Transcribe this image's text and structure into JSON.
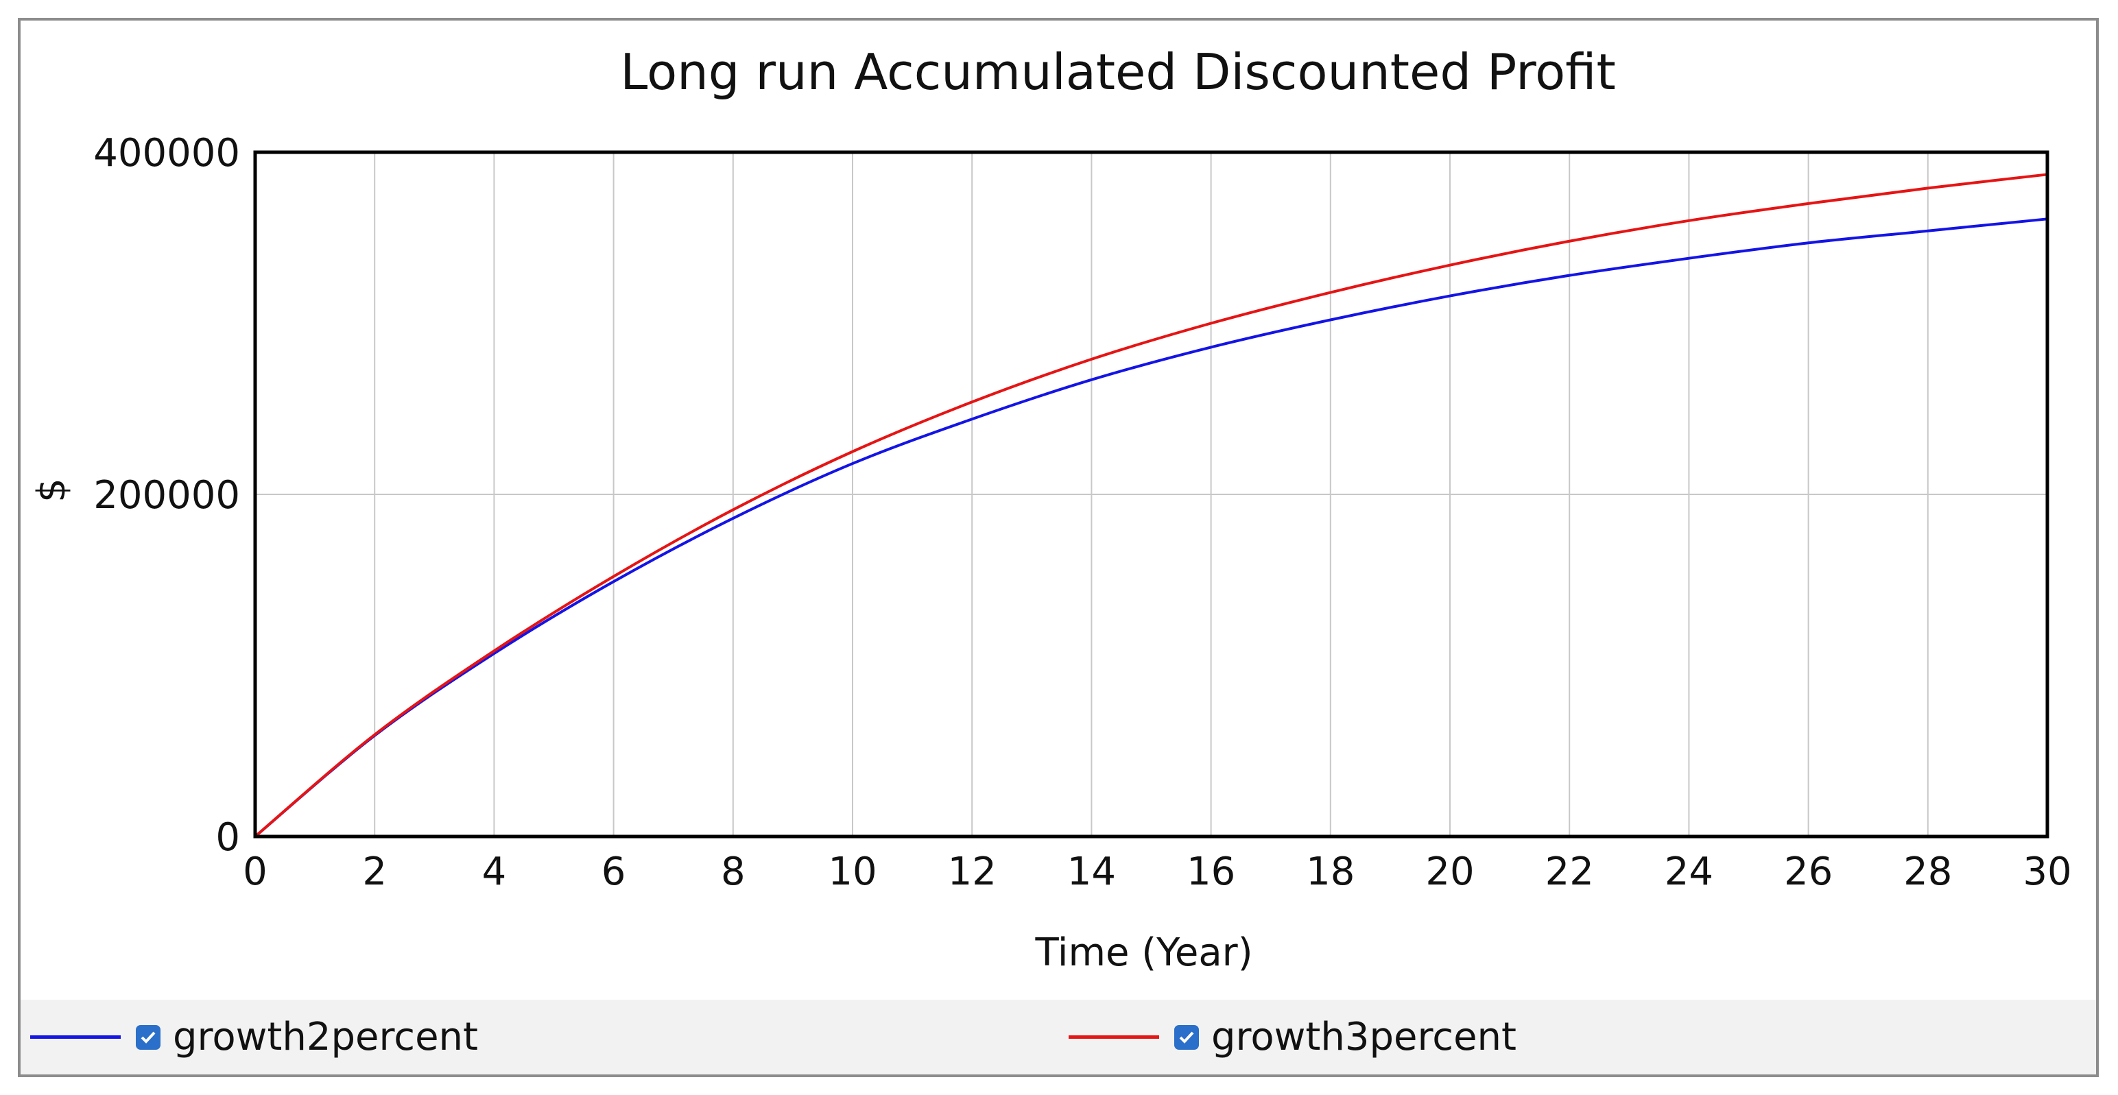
{
  "chart_data": {
    "type": "line",
    "title": "Long run Accumulated Discounted Profit",
    "xlabel": "Time (Year)",
    "ylabel": "$",
    "xlim": [
      0,
      30
    ],
    "ylim": [
      0,
      400000
    ],
    "x_ticks": [
      0,
      2,
      4,
      6,
      8,
      10,
      12,
      14,
      16,
      18,
      20,
      22,
      24,
      26,
      28,
      30
    ],
    "y_ticks": [
      0,
      200000,
      400000
    ],
    "grid": true,
    "legend_position": "bottom",
    "x": [
      0,
      2,
      4,
      6,
      8,
      10,
      12,
      14,
      16,
      18,
      20,
      22,
      24,
      26,
      28,
      30
    ],
    "series": [
      {
        "name": "growth2percent",
        "color": "#1414e6",
        "values": [
          0,
          59000,
          107000,
          149000,
          186000,
          218000,
          244000,
          267000,
          286000,
          302000,
          316000,
          328000,
          338000,
          347000,
          354000,
          361000
        ]
      },
      {
        "name": "growth3percent",
        "color": "#e61414",
        "values": [
          0,
          59500,
          108500,
          152000,
          191000,
          225000,
          254000,
          279000,
          300000,
          318000,
          334000,
          348000,
          360000,
          370000,
          379000,
          387000
        ]
      }
    ]
  }
}
